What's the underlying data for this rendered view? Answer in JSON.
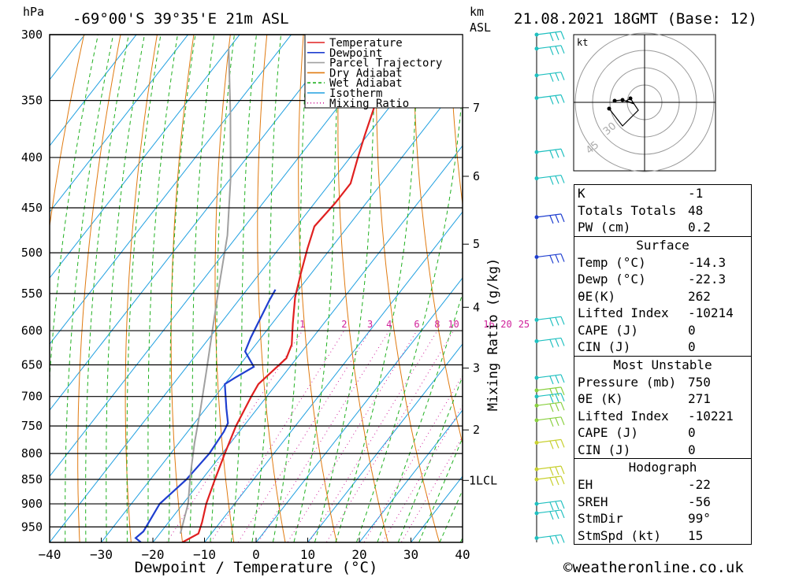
{
  "header": {
    "location": "-69°00'S  39°35'E  21m  ASL",
    "datetime": "21.08.2021  18GMT  (Base: 12)",
    "hpa_label": "hPa",
    "km_label": "km",
    "asl_label": "ASL",
    "credit": "©weatheronline.co.uk"
  },
  "chart_data": {
    "type": "line",
    "title": "-69°00'S  39°35'E  21m  ASL",
    "xlabel": "Dewpoint / Temperature (°C)",
    "ylabel": "hPa",
    "secondary_ylabel": "Mixing Ratio (g/kg)",
    "xlim": [
      -40,
      40
    ],
    "ylim": [
      985,
      300
    ],
    "y_scale": "log",
    "x_ticks": [
      -40,
      -30,
      -20,
      -10,
      0,
      10,
      20,
      30,
      40
    ],
    "p_ticks": [
      300,
      350,
      400,
      450,
      500,
      550,
      600,
      650,
      700,
      750,
      800,
      850,
      900,
      950
    ],
    "km_ticks": [
      {
        "label": "7",
        "p": 356
      },
      {
        "label": "6",
        "p": 418
      },
      {
        "label": "5",
        "p": 490
      },
      {
        "label": "4",
        "p": 568
      },
      {
        "label": "3",
        "p": 655
      },
      {
        "label": "2",
        "p": 757
      },
      {
        "label": "1LCL",
        "p": 852
      }
    ],
    "mixing_ratio_labels": [
      "1",
      "2",
      "3",
      "4",
      "6",
      "8",
      "10",
      "16",
      "20",
      "25"
    ],
    "mixing_ratio_values": [
      1,
      2,
      3,
      4,
      6,
      8,
      10,
      16,
      20,
      25
    ],
    "legend": {
      "position": "top-right",
      "items": [
        {
          "name": "Temperature",
          "color": "#e02020",
          "style": "solid"
        },
        {
          "name": "Dewpoint",
          "color": "#1f3fd0",
          "style": "solid"
        },
        {
          "name": "Parcel Trajectory",
          "color": "#a0a0a0",
          "style": "solid"
        },
        {
          "name": "Dry Adiabat",
          "color": "#e07a10",
          "style": "solid"
        },
        {
          "name": "Wet Adiabat",
          "color": "#20b020",
          "style": "dashed"
        },
        {
          "name": "Isotherm",
          "color": "#20a0e0",
          "style": "solid"
        },
        {
          "name": "Mixing Ratio",
          "color": "#d0209a",
          "style": "dotted"
        }
      ]
    },
    "series": [
      {
        "name": "Temperature",
        "color": "#e02020",
        "points": [
          [
            -14.3,
            985
          ],
          [
            -12.5,
            965
          ],
          [
            -13.5,
            940
          ],
          [
            -15.5,
            900
          ],
          [
            -17.5,
            850
          ],
          [
            -19.5,
            800
          ],
          [
            -21.5,
            750
          ],
          [
            -23,
            700
          ],
          [
            -23.5,
            680
          ],
          [
            -22,
            640
          ],
          [
            -23,
            620
          ],
          [
            -26,
            590
          ],
          [
            -29.5,
            555
          ],
          [
            -32,
            525
          ],
          [
            -34.5,
            495
          ],
          [
            -36.5,
            470
          ],
          [
            -36,
            445
          ],
          [
            -36,
            425
          ],
          [
            -38.5,
            400
          ],
          [
            -40.5,
            380
          ],
          [
            -43,
            355
          ],
          [
            -45,
            330
          ],
          [
            -46.5,
            305
          ]
        ]
      },
      {
        "name": "Dewpoint",
        "color": "#1f3fd0",
        "points": [
          [
            -22.3,
            985
          ],
          [
            -24,
            975
          ],
          [
            -23.5,
            960
          ],
          [
            -24.5,
            900
          ],
          [
            -23,
            850
          ],
          [
            -22.5,
            800
          ],
          [
            -23,
            760
          ],
          [
            -23.5,
            745
          ],
          [
            -26,
            720
          ],
          [
            -30,
            680
          ],
          [
            -29,
            670
          ],
          [
            -27,
            653
          ],
          [
            -31,
            630
          ],
          [
            -32,
            610
          ],
          [
            -34,
            560
          ],
          [
            -34.5,
            545
          ]
        ]
      },
      {
        "name": "Parcel Trajectory",
        "color": "#a0a0a0",
        "points": [
          [
            -16,
            965
          ],
          [
            -19,
            900
          ],
          [
            -23,
            840
          ],
          [
            -27,
            780
          ],
          [
            -31,
            720
          ],
          [
            -35.5,
            660
          ],
          [
            -40.5,
            600
          ],
          [
            -46,
            540
          ],
          [
            -52,
            480
          ],
          [
            -60,
            420
          ],
          [
            -70,
            360
          ],
          [
            -80,
            310
          ]
        ]
      }
    ]
  },
  "hodograph": {
    "unit_label": "kt",
    "ring_labels": [
      "30",
      "45"
    ]
  },
  "indices": {
    "top": [
      {
        "key": "K",
        "value": "-1"
      },
      {
        "key": "Totals Totals",
        "value": "48"
      },
      {
        "key": "PW (cm)",
        "value": "0.2"
      }
    ],
    "surface": {
      "title": "Surface",
      "rows": [
        {
          "key": "Temp (°C)",
          "value": "-14.3"
        },
        {
          "key": "Dewp (°C)",
          "value": "-22.3"
        },
        {
          "key": "θE(K)",
          "value": "262"
        },
        {
          "key": "Lifted Index",
          "value": "-10214"
        },
        {
          "key": "CAPE (J)",
          "value": "0"
        },
        {
          "key": "CIN (J)",
          "value": "0"
        }
      ]
    },
    "most_unstable": {
      "title": "Most Unstable",
      "rows": [
        {
          "key": "Pressure (mb)",
          "value": "750"
        },
        {
          "key": "θE (K)",
          "value": "271"
        },
        {
          "key": "Lifted Index",
          "value": "-10221"
        },
        {
          "key": "CAPE (J)",
          "value": "0"
        },
        {
          "key": "CIN (J)",
          "value": "0"
        }
      ]
    },
    "hodo": {
      "title": "Hodograph",
      "rows": [
        {
          "key": "EH",
          "value": "-22"
        },
        {
          "key": "SREH",
          "value": "-56"
        },
        {
          "key": "StmDir",
          "value": "99°"
        },
        {
          "key": "StmSpd (kt)",
          "value": "15"
        }
      ]
    }
  },
  "colors": {
    "temperature": "#e02020",
    "dewpoint": "#1f3fd0",
    "parcel": "#a0a0a0",
    "dry_adiabat": "#e07a10",
    "wet_adiabat": "#20b020",
    "isotherm": "#20a0e0",
    "mixing_ratio": "#d0209a",
    "wind_barb": "#20c0c0"
  }
}
